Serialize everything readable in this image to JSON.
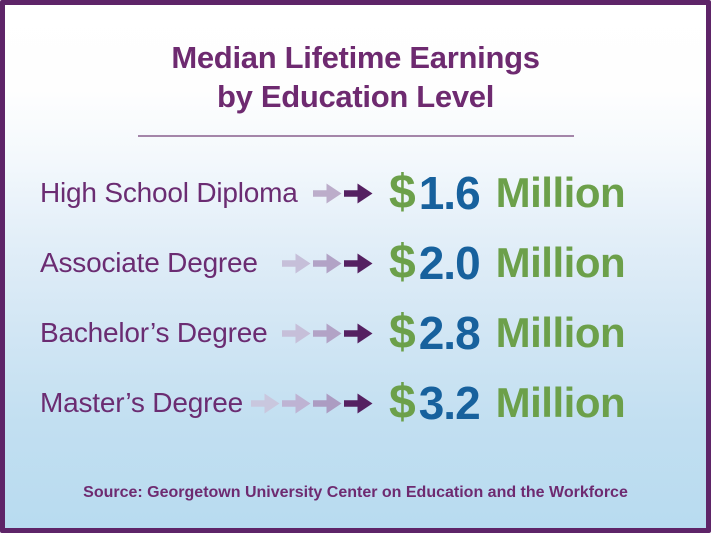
{
  "title": {
    "line1": "Median Lifetime Earnings",
    "line2": "by Education Level"
  },
  "rows": [
    {
      "label": "High School Diploma",
      "currency": "$",
      "value": "1.6",
      "unit": "Million",
      "arrow_colors": [
        "#bcadca",
        "#552061"
      ]
    },
    {
      "label": "Associate Degree",
      "currency": "$",
      "value": "2.0",
      "unit": "Million",
      "arrow_colors": [
        "#c6bfd9",
        "#b2a3c6",
        "#552061"
      ]
    },
    {
      "label": "Bachelor’s Degree",
      "currency": "$",
      "value": "2.8",
      "unit": "Million",
      "arrow_colors": [
        "#c6bfd9",
        "#b2a3c6",
        "#552061"
      ]
    },
    {
      "label": "Master’s Degree",
      "currency": "$",
      "value": "3.2",
      "unit": "Million",
      "arrow_colors": [
        "#c9c7de",
        "#beb3d3",
        "#ac9cc2",
        "#552061"
      ]
    }
  ],
  "source": "Source: Georgetown University Center on Education and the Workforce",
  "colors": {
    "frame_border": "#5e2468",
    "title_purple": "#6e2a70",
    "label_purple": "#6b2c72",
    "divider_purple": "#a485a9",
    "dark_arrow": "#552061",
    "value_green": "#6ca04a",
    "value_blue": "#17619d",
    "background_top": "#ffffff",
    "background_bottom": "#b8dbf0"
  },
  "chart_data": {
    "type": "table",
    "title": "Median Lifetime Earnings by Education Level",
    "categories": [
      "High School Diploma",
      "Associate Degree",
      "Bachelor’s Degree",
      "Master’s Degree"
    ],
    "values": [
      1.6,
      2.0,
      2.8,
      3.2
    ],
    "unit": "Million (USD)",
    "value_labels": [
      "$1.6 Million",
      "$2.0 Million",
      "$2.8 Million",
      "$3.2 Million"
    ],
    "arrow_counts_per_row": [
      2,
      3,
      3,
      4
    ],
    "source": "Source: Georgetown University Center on Education and the Workforce",
    "layout": "label left, arrow pictographs pointing right, value right; values left-aligned in a shared column"
  }
}
